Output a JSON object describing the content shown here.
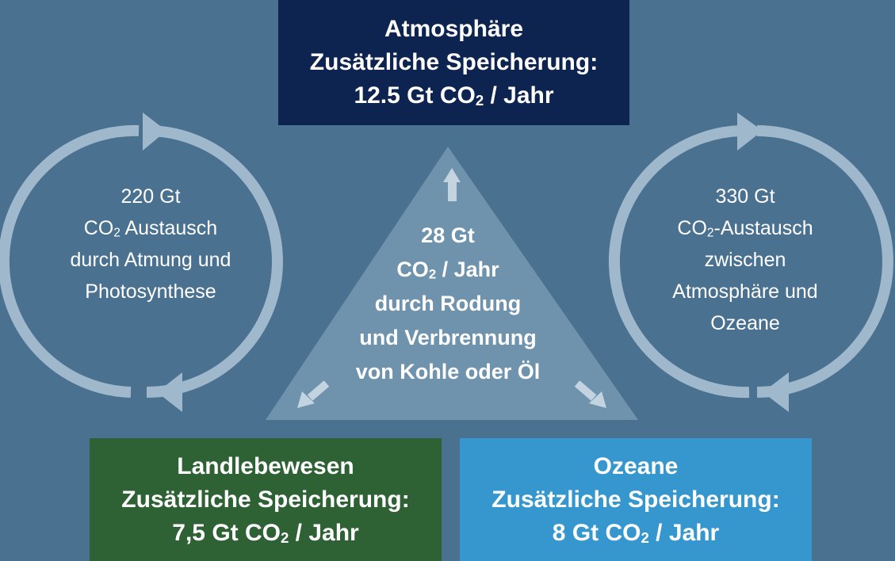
{
  "atmosphere": {
    "title": "Atmosphäre",
    "line1": "Zusätzliche Speicherung:",
    "value_pre": "12.5 Gt CO",
    "sub": "2",
    "value_post": " / Jahr"
  },
  "land": {
    "title": "Landlebewesen",
    "line1": "Zusätzliche Speicherung:",
    "value_pre": "7,5 Gt CO",
    "sub": "2",
    "value_post": " / Jahr"
  },
  "ocean": {
    "title": "Ozeane",
    "line1": "Zusätzliche Speicherung:",
    "value_pre": "8 Gt CO",
    "sub": "2",
    "value_post": " / Jahr"
  },
  "left_cycle": {
    "line1": "220 Gt",
    "line2_pre": "CO",
    "sub": "2",
    "line2_post": " Austausch",
    "line3": "durch Atmung und",
    "line4": "Photosynthese"
  },
  "right_cycle": {
    "line1": "330 Gt",
    "line2_pre": "CO",
    "sub": "2",
    "line2_post": "-Austausch",
    "line3": "zwischen",
    "line4": "Atmosphäre und",
    "line5": "Ozeane"
  },
  "emissions": {
    "line1": "28 Gt",
    "line2_pre": "CO",
    "sub": "2",
    "line2_post": " / Jahr",
    "line3": "durch Rodung",
    "line4": "und Verbrennung",
    "line5": "von Kohle oder Öl"
  },
  "colors": {
    "background": "#4a7190",
    "atmosphere_box": "#0d2350",
    "land_box": "#2e6234",
    "ocean_box": "#3597cd",
    "triangle": "#6f93ad",
    "cycle_arrows": "#9fb8cb"
  }
}
